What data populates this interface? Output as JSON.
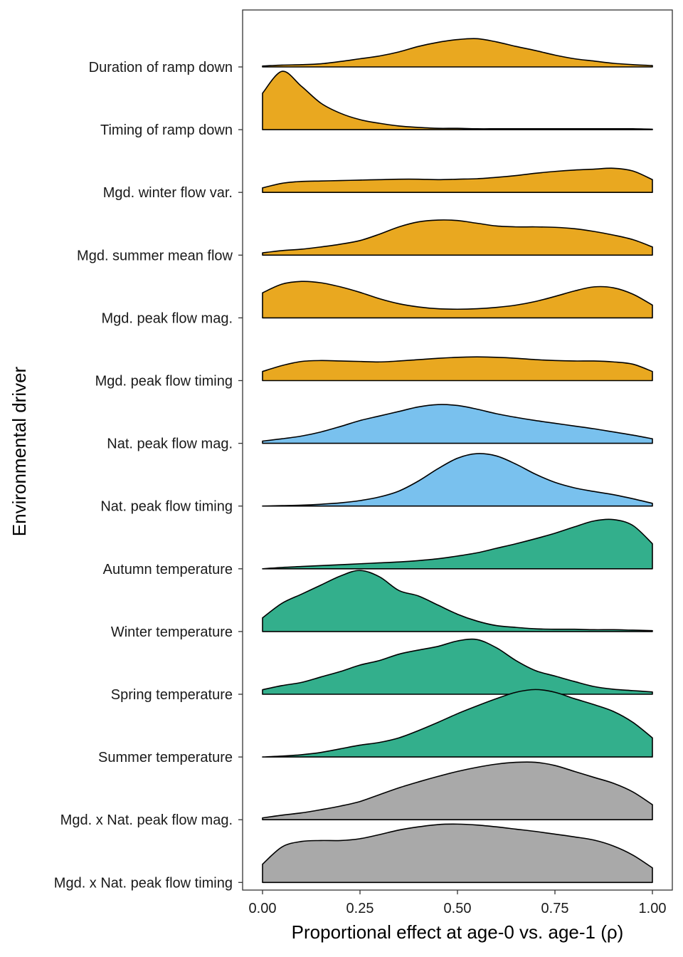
{
  "chart_data": {
    "type": "ridgeline",
    "xlabel": "Proportional effect at age-0 vs. age-1 (ρ)",
    "ylabel": "Environmental driver",
    "xlim": [
      0,
      1
    ],
    "xticks": [
      0,
      0.25,
      0.5,
      0.75,
      1
    ],
    "xtick_labels": [
      "0.00",
      "0.25",
      "0.50",
      "0.75",
      "1.00"
    ],
    "grid": false,
    "x": [
      0,
      0.05,
      0.1,
      0.15,
      0.2,
      0.25,
      0.3,
      0.35,
      0.4,
      0.45,
      0.5,
      0.55,
      0.6,
      0.65,
      0.7,
      0.75,
      0.8,
      0.85,
      0.9,
      0.95,
      1.0
    ],
    "series": [
      {
        "name": "Duration of ramp down",
        "color": "#E9A820",
        "density": [
          0.02,
          0.04,
          0.05,
          0.07,
          0.12,
          0.18,
          0.24,
          0.33,
          0.45,
          0.54,
          0.6,
          0.62,
          0.55,
          0.45,
          0.36,
          0.26,
          0.18,
          0.13,
          0.08,
          0.05,
          0.03
        ]
      },
      {
        "name": "Timing of ramp down",
        "color": "#E9A820",
        "density": [
          0.8,
          1.28,
          0.95,
          0.58,
          0.36,
          0.22,
          0.14,
          0.08,
          0.05,
          0.03,
          0.03,
          0.02,
          0.02,
          0.02,
          0.02,
          0.02,
          0.02,
          0.02,
          0.02,
          0.02,
          0.01
        ]
      },
      {
        "name": "Mgd. winter flow var.",
        "color": "#E9A820",
        "density": [
          0.1,
          0.2,
          0.24,
          0.25,
          0.26,
          0.27,
          0.28,
          0.29,
          0.29,
          0.28,
          0.29,
          0.3,
          0.33,
          0.37,
          0.42,
          0.46,
          0.49,
          0.51,
          0.53,
          0.47,
          0.28
        ]
      },
      {
        "name": "Mgd. summer mean flow",
        "color": "#E9A820",
        "density": [
          0.05,
          0.1,
          0.13,
          0.18,
          0.24,
          0.32,
          0.46,
          0.62,
          0.73,
          0.77,
          0.76,
          0.7,
          0.64,
          0.62,
          0.62,
          0.61,
          0.58,
          0.52,
          0.44,
          0.34,
          0.18
        ]
      },
      {
        "name": "Mgd. peak flow mag.",
        "color": "#E9A820",
        "density": [
          0.55,
          0.74,
          0.8,
          0.77,
          0.68,
          0.56,
          0.42,
          0.31,
          0.24,
          0.2,
          0.19,
          0.2,
          0.23,
          0.28,
          0.36,
          0.47,
          0.59,
          0.68,
          0.66,
          0.52,
          0.28
        ]
      },
      {
        "name": "Mgd. peak flow timing",
        "color": "#E9A820",
        "density": [
          0.2,
          0.33,
          0.42,
          0.44,
          0.43,
          0.42,
          0.41,
          0.43,
          0.46,
          0.49,
          0.51,
          0.52,
          0.51,
          0.49,
          0.46,
          0.44,
          0.43,
          0.43,
          0.41,
          0.36,
          0.2
        ]
      },
      {
        "name": "Nat. peak flow mag.",
        "color": "#79C1EE",
        "density": [
          0.05,
          0.1,
          0.16,
          0.25,
          0.37,
          0.5,
          0.6,
          0.7,
          0.8,
          0.85,
          0.83,
          0.75,
          0.65,
          0.57,
          0.5,
          0.44,
          0.38,
          0.32,
          0.25,
          0.18,
          0.1
        ]
      },
      {
        "name": "Nat. peak flow timing",
        "color": "#79C1EE",
        "density": [
          0.0,
          0.01,
          0.02,
          0.04,
          0.07,
          0.12,
          0.2,
          0.33,
          0.55,
          0.82,
          1.05,
          1.15,
          1.1,
          0.92,
          0.7,
          0.52,
          0.4,
          0.32,
          0.25,
          0.16,
          0.06
        ]
      },
      {
        "name": "Autumn temperature",
        "color": "#33AF8C",
        "density": [
          0.0,
          0.03,
          0.05,
          0.07,
          0.09,
          0.11,
          0.13,
          0.15,
          0.18,
          0.22,
          0.28,
          0.35,
          0.45,
          0.55,
          0.66,
          0.78,
          0.92,
          1.05,
          1.08,
          0.95,
          0.55
        ]
      },
      {
        "name": "Winter temperature",
        "color": "#33AF8C",
        "density": [
          0.3,
          0.62,
          0.82,
          1.02,
          1.22,
          1.34,
          1.2,
          0.9,
          0.78,
          0.58,
          0.38,
          0.23,
          0.13,
          0.09,
          0.06,
          0.05,
          0.05,
          0.04,
          0.04,
          0.03,
          0.02
        ]
      },
      {
        "name": "Spring temperature",
        "color": "#33AF8C",
        "density": [
          0.1,
          0.19,
          0.26,
          0.38,
          0.5,
          0.64,
          0.74,
          0.88,
          0.97,
          1.05,
          1.17,
          1.2,
          1.02,
          0.74,
          0.52,
          0.4,
          0.28,
          0.17,
          0.11,
          0.08,
          0.05
        ]
      },
      {
        "name": "Summer temperature",
        "color": "#33AF8C",
        "density": [
          0.0,
          0.02,
          0.05,
          0.1,
          0.18,
          0.26,
          0.32,
          0.42,
          0.58,
          0.76,
          0.95,
          1.12,
          1.28,
          1.42,
          1.48,
          1.42,
          1.28,
          1.15,
          1.0,
          0.76,
          0.42
        ]
      },
      {
        "name": "Mgd. x Nat. peak flow mag.",
        "color": "#A9A9A9",
        "density": [
          0.04,
          0.1,
          0.15,
          0.22,
          0.3,
          0.4,
          0.55,
          0.7,
          0.83,
          0.95,
          1.06,
          1.15,
          1.22,
          1.26,
          1.26,
          1.19,
          1.06,
          0.93,
          0.8,
          0.61,
          0.33
        ]
      },
      {
        "name": "Mgd. x Nat. peak flow timing",
        "color": "#A9A9A9",
        "density": [
          0.4,
          0.78,
          0.9,
          0.92,
          0.92,
          0.96,
          1.05,
          1.15,
          1.22,
          1.27,
          1.28,
          1.26,
          1.22,
          1.17,
          1.12,
          1.06,
          1.0,
          0.93,
          0.8,
          0.6,
          0.32
        ]
      }
    ]
  }
}
